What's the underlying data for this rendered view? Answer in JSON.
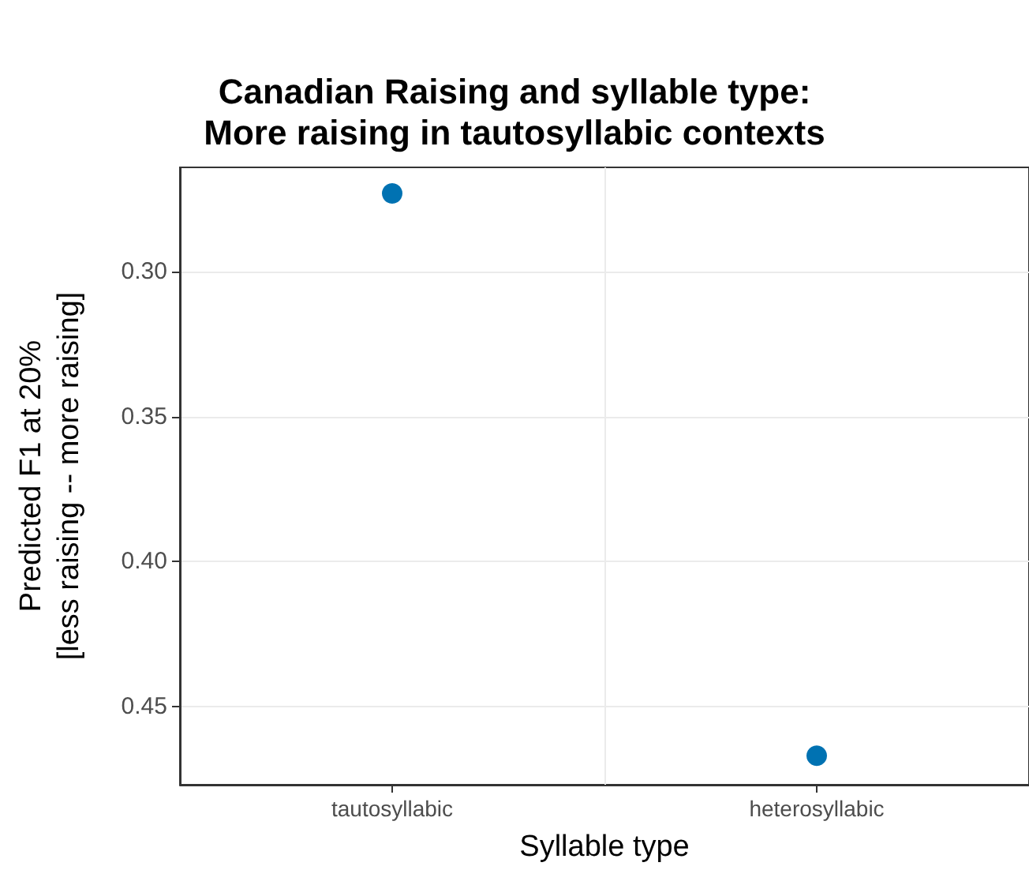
{
  "chart_data": {
    "type": "scatter",
    "title": "Canadian Raising and syllable type:\nMore raising in tautosyllabic contexts",
    "xlabel": "Syllable type",
    "ylabel": "Predicted F1 at 20%\n[less raising -- more raising]",
    "categories": [
      "tautosyllabic",
      "heterosyllabic"
    ],
    "series": [
      {
        "color": "#0072b2",
        "values": [
          0.273,
          0.467
        ]
      }
    ],
    "ylim": [
      0.477,
      0.264
    ],
    "yticks": [
      {
        "value": 0.3,
        "label": "0.30"
      },
      {
        "value": 0.35,
        "label": "0.35"
      },
      {
        "value": 0.4,
        "label": "0.40"
      },
      {
        "value": 0.45,
        "label": "0.45"
      }
    ],
    "grid": true,
    "marker": "circle"
  }
}
